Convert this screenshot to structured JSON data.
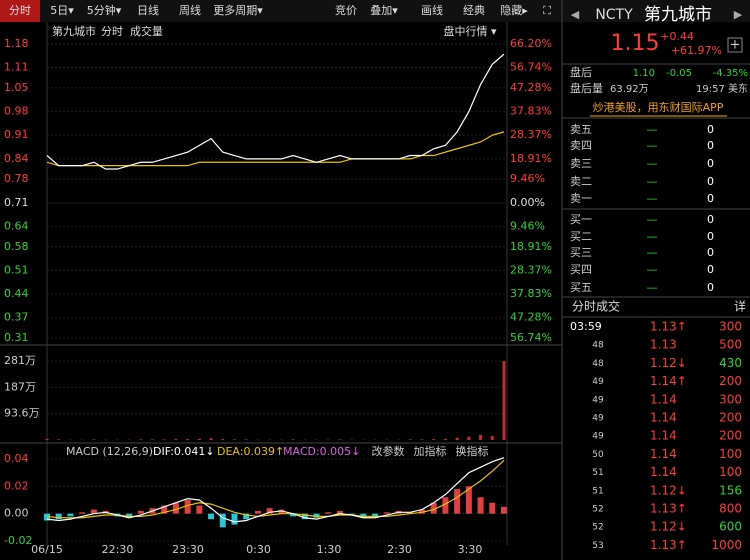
{
  "toolbar": {
    "left": [
      "分时",
      "5日▾",
      "5分钟▾",
      "日线",
      "周线",
      "更多周期▾"
    ],
    "right": [
      "竞价",
      "叠加▾",
      "画线",
      "经典",
      "隐藏▸",
      "⛶"
    ]
  },
  "chart_header": {
    "name": "第九城市",
    "mode": "分时",
    "volume": "成交量",
    "menu": "盘中行情 ▾"
  },
  "price_chart": {
    "type": "line",
    "ylim": [
      0.31,
      1.18
    ],
    "yticks": [
      1.18,
      1.11,
      1.05,
      0.98,
      0.91,
      0.84,
      0.78,
      0.71,
      0.64,
      0.58,
      0.51,
      0.44,
      0.37,
      0.31
    ],
    "pct_labels": [
      "66.20%",
      "56.74%",
      "47.28%",
      "37.83%",
      "28.37%",
      "18.91%",
      "9.46%",
      "0.00%",
      "9.46%",
      "18.91%",
      "28.37%",
      "37.83%",
      "47.28%",
      "56.74%"
    ],
    "base": 0.71,
    "price": [
      0.85,
      0.82,
      0.82,
      0.82,
      0.83,
      0.81,
      0.81,
      0.82,
      0.83,
      0.83,
      0.84,
      0.85,
      0.86,
      0.88,
      0.9,
      0.86,
      0.85,
      0.84,
      0.84,
      0.84,
      0.84,
      0.85,
      0.84,
      0.83,
      0.84,
      0.85,
      0.84,
      0.84,
      0.84,
      0.84,
      0.84,
      0.85,
      0.85,
      0.87,
      0.88,
      0.92,
      0.98,
      1.06,
      1.12,
      1.15
    ],
    "average": [
      0.83,
      0.82,
      0.82,
      0.82,
      0.82,
      0.82,
      0.82,
      0.82,
      0.82,
      0.82,
      0.82,
      0.82,
      0.82,
      0.83,
      0.83,
      0.83,
      0.83,
      0.83,
      0.83,
      0.83,
      0.83,
      0.83,
      0.83,
      0.83,
      0.83,
      0.83,
      0.84,
      0.84,
      0.84,
      0.84,
      0.84,
      0.84,
      0.85,
      0.85,
      0.86,
      0.87,
      0.88,
      0.89,
      0.91,
      0.92
    ],
    "price_color": "#ffffff",
    "average_color": "#e8c300"
  },
  "volume_chart": {
    "type": "bar",
    "ylim": [
      0,
      281
    ],
    "yticks": [
      {
        "value": 281,
        "label": "281万"
      },
      {
        "value": 187,
        "label": "187万"
      },
      {
        "value": 93.6,
        "label": "93.6万"
      }
    ],
    "values": [
      4,
      2,
      1,
      1,
      2,
      1,
      1,
      1,
      2,
      2,
      2,
      3,
      3,
      4,
      6,
      3,
      2,
      2,
      1,
      1,
      1,
      2,
      1,
      1,
      1,
      2,
      1,
      1,
      1,
      1,
      1,
      2,
      2,
      3,
      4,
      8,
      12,
      18,
      14,
      281
    ],
    "color": "#c03030"
  },
  "macd_chart": {
    "type": "bar",
    "header": [
      "MACD (12,26,9)",
      "DIF:0.041↓",
      "DEA:0.039↑",
      "MACD:0.005↓"
    ],
    "buttons": [
      "改参数",
      "加指标",
      "换指标"
    ],
    "ylim": [
      -0.02,
      0.04
    ],
    "yticks": [
      0.04,
      0.02,
      {
        "value": 0,
        "label": "0.00"
      },
      -0.02
    ],
    "values": [
      -0.005,
      -0.004,
      -0.002,
      0.001,
      0.003,
      0.002,
      -0.002,
      -0.003,
      0.002,
      0.004,
      0.006,
      0.008,
      0.01,
      0.006,
      -0.004,
      -0.01,
      -0.008,
      -0.004,
      0.002,
      0.004,
      0.003,
      -0.002,
      -0.004,
      -0.003,
      0.001,
      0.002,
      -0.001,
      -0.003,
      -0.002,
      0.001,
      0.002,
      0.001,
      0.003,
      0.008,
      0.012,
      0.018,
      0.02,
      0.012,
      0.008,
      0.005
    ],
    "dif": [
      -0.004,
      -0.005,
      -0.004,
      -0.002,
      0,
      0.001,
      -0.001,
      -0.003,
      -0.001,
      0.002,
      0.005,
      0.008,
      0.011,
      0.01,
      0.004,
      -0.003,
      -0.006,
      -0.005,
      -0.002,
      0.001,
      0.002,
      0,
      -0.003,
      -0.004,
      -0.002,
      0,
      -0.001,
      -0.003,
      -0.003,
      -0.001,
      0.001,
      0.001,
      0.003,
      0.008,
      0.014,
      0.022,
      0.03,
      0.034,
      0.038,
      0.041
    ],
    "dea": [
      -0.002,
      -0.003,
      -0.003,
      -0.003,
      -0.002,
      -0.001,
      -0.001,
      -0.002,
      -0.002,
      -0.001,
      0.001,
      0.003,
      0.006,
      0.008,
      0.007,
      0.004,
      0.001,
      -0.001,
      -0.002,
      -0.001,
      0,
      0,
      -0.001,
      -0.002,
      -0.002,
      -0.001,
      -0.001,
      -0.002,
      -0.002,
      -0.002,
      -0.001,
      0,
      0.001,
      0.003,
      0.007,
      0.012,
      0.018,
      0.024,
      0.031,
      0.039
    ],
    "positive_color": "#e04040",
    "negative_color": "#20c8d8",
    "dif_color": "#ffffff",
    "dea_color": "#e8c300"
  },
  "time_labels": [
    "06/15",
    "22:30",
    "23:30",
    "0:30",
    "1:30",
    "2:30",
    "3:30"
  ],
  "quote": {
    "symbol": "NCTY",
    "name": "第九城市",
    "price": "1.15",
    "change": "+0.44",
    "change_pct": "+61.97%",
    "after_label": "盘后",
    "after_price": "1.10",
    "after_change": "-0.05",
    "after_pct": "-4.35%",
    "after_vol_label": "盘后量",
    "after_vol": "63.92万",
    "after_time": "19:57 美东",
    "promo": "炒港美股，用东财国际APP"
  },
  "order_book": {
    "rows": [
      [
        "卖五",
        "—",
        "0"
      ],
      [
        "卖四",
        "—",
        "0"
      ],
      [
        "卖三",
        "—",
        "0"
      ],
      [
        "卖二",
        "—",
        "0"
      ],
      [
        "卖一",
        "—",
        "0"
      ],
      [
        "买一",
        "—",
        "0"
      ],
      [
        "买二",
        "—",
        "0"
      ],
      [
        "买三",
        "—",
        "0"
      ],
      [
        "买四",
        "—",
        "0"
      ],
      [
        "买五",
        "—",
        "0"
      ]
    ]
  },
  "trades": {
    "title": "分时成交",
    "detail": "详",
    "rows": [
      [
        "03:59",
        "1.13↑",
        "300"
      ],
      [
        "48",
        "1.13",
        "500"
      ],
      [
        "48",
        "1.12↓",
        "430"
      ],
      [
        "49",
        "1.14↑",
        "200"
      ],
      [
        "49",
        "1.14",
        "300"
      ],
      [
        "49",
        "1.14",
        "200"
      ],
      [
        "49",
        "1.14",
        "200"
      ],
      [
        "50",
        "1.14",
        "100"
      ],
      [
        "51",
        "1.14",
        "100"
      ],
      [
        "51",
        "1.12↓",
        "156"
      ],
      [
        "52",
        "1.13↑",
        "800"
      ],
      [
        "52",
        "1.12↓",
        "600"
      ],
      [
        "53",
        "1.13↑",
        "1000"
      ]
    ]
  }
}
